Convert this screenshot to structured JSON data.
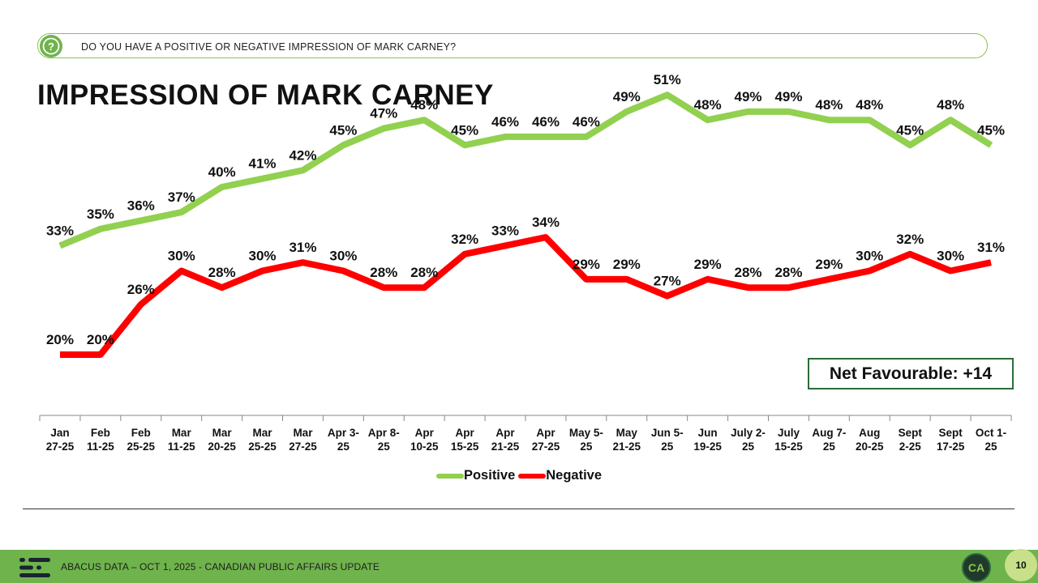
{
  "question": "DO YOU HAVE A POSITIVE OR NEGATIVE IMPRESSION OF MARK CARNEY?",
  "title": "IMPRESSION OF MARK CARNEY",
  "net_favourable": "Net Favourable: +14",
  "footer": {
    "source": "ABACUS DATA – OCT 1, 2025 - CANADIAN PUBLIC AFFAIRS UPDATE",
    "badge": "CA",
    "page_number": "10"
  },
  "colors": {
    "positive": "#92d050",
    "negative": "#ff0000",
    "accent": "#6fb34c"
  },
  "chart_data": {
    "type": "line",
    "title": "IMPRESSION OF MARK CARNEY",
    "categories": [
      [
        "Jan",
        "27-25"
      ],
      [
        "Feb",
        "11-25"
      ],
      [
        "Feb",
        "25-25"
      ],
      [
        "Mar",
        "11-25"
      ],
      [
        "Mar",
        "20-25"
      ],
      [
        "Mar",
        "25-25"
      ],
      [
        "Mar",
        "27-25"
      ],
      [
        "Apr 3-",
        "25"
      ],
      [
        "Apr 8-",
        "25"
      ],
      [
        "Apr",
        "10-25"
      ],
      [
        "Apr",
        "15-25"
      ],
      [
        "Apr",
        "21-25"
      ],
      [
        "Apr",
        "27-25"
      ],
      [
        "May 5-",
        "25"
      ],
      [
        "May",
        "21-25"
      ],
      [
        "Jun 5-",
        "25"
      ],
      [
        "Jun",
        "19-25"
      ],
      [
        "July 2-",
        "25"
      ],
      [
        "July",
        "15-25"
      ],
      [
        "Aug 7-",
        "25"
      ],
      [
        "Aug",
        "20-25"
      ],
      [
        "Sept",
        "2-25"
      ],
      [
        "Sept",
        "17-25"
      ],
      [
        "Oct 1-",
        "25"
      ]
    ],
    "series": [
      {
        "name": "Positive",
        "color": "#92d050",
        "values": [
          33,
          35,
          36,
          37,
          40,
          41,
          42,
          45,
          47,
          48,
          45,
          46,
          46,
          46,
          49,
          51,
          48,
          49,
          49,
          48,
          48,
          45,
          48,
          45
        ]
      },
      {
        "name": "Negative",
        "color": "#ff0000",
        "values": [
          20,
          20,
          26,
          30,
          28,
          30,
          31,
          30,
          28,
          28,
          32,
          33,
          34,
          29,
          29,
          27,
          29,
          28,
          28,
          29,
          30,
          32,
          30,
          31
        ]
      }
    ],
    "value_suffix": "%",
    "ylim": [
      10,
      60
    ],
    "legend": "bottom-center"
  }
}
